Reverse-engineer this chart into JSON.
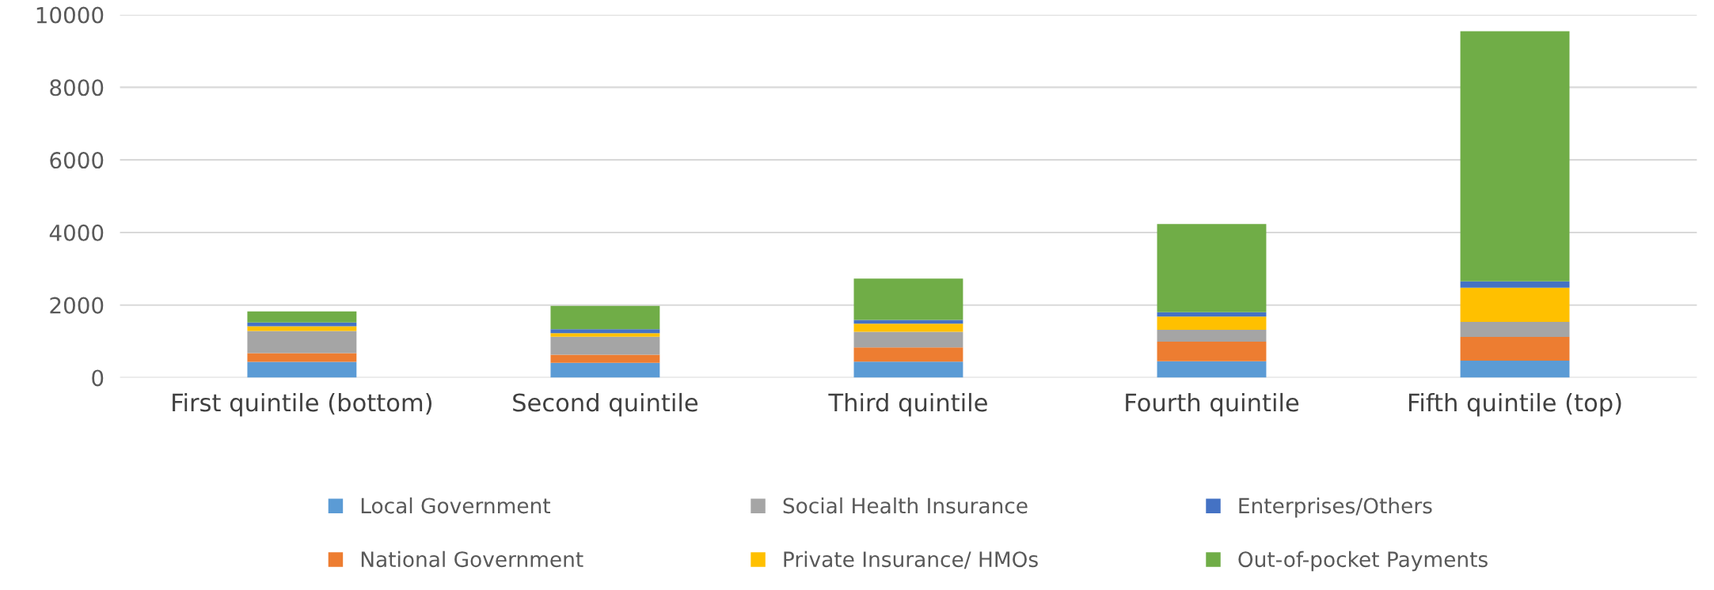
{
  "chart_data": {
    "type": "bar",
    "stacked": true,
    "categories": [
      "First quintile (bottom)",
      "Second quintile",
      "Third quintile",
      "Fourth quintile",
      "Fifth quintile (top)"
    ],
    "series": [
      {
        "name": "Local Government",
        "color": "#5b9bd5",
        "values": [
          433,
          408,
          442,
          450,
          465
        ]
      },
      {
        "name": "National Government",
        "color": "#ed7d31",
        "values": [
          242,
          225,
          392,
          540,
          655
        ]
      },
      {
        "name": "Social Health Insurance",
        "color": "#a5a5a5",
        "values": [
          608,
          492,
          428,
          330,
          414
        ]
      },
      {
        "name": "Private Insurance/ HMOs",
        "color": "#ffc000",
        "values": [
          134,
          100,
          224,
          360,
          945
        ]
      },
      {
        "name": "Enterprises/Others",
        "color": "#4472c4",
        "values": [
          100,
          108,
          102,
          120,
          175
        ]
      },
      {
        "name": "Out-of-pocket Payments",
        "color": "#70ad47",
        "values": [
          308,
          642,
          1138,
          2430,
          6891
        ]
      }
    ],
    "ylim": [
      0,
      10000
    ],
    "yticks": [
      0,
      2000,
      4000,
      6000,
      8000,
      10000
    ],
    "grid": "y",
    "legend": "bottom"
  }
}
